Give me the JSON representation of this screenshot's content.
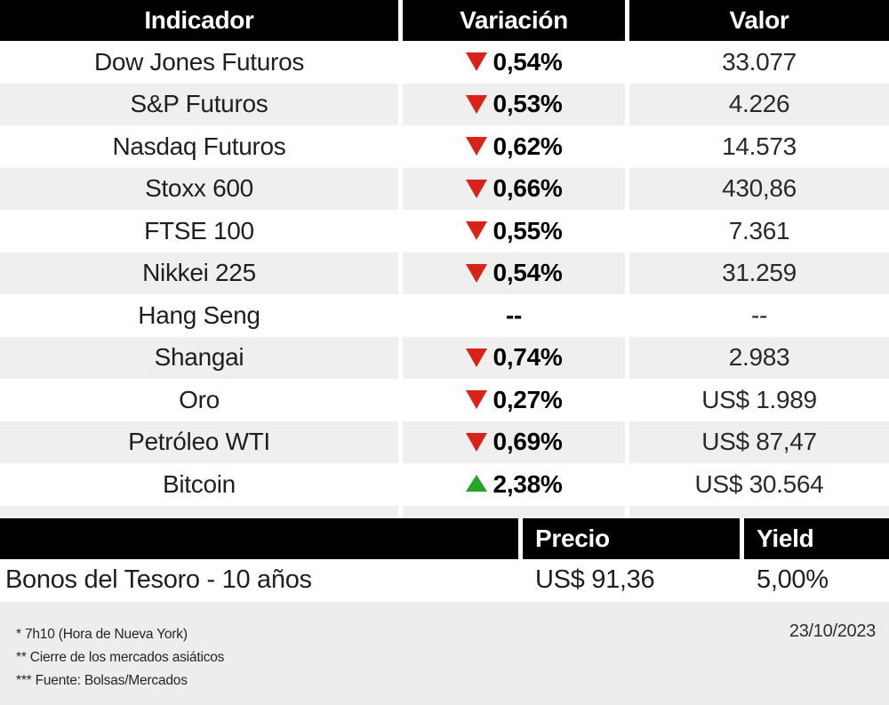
{
  "colors": {
    "header_bg": "#000000",
    "row_alt_bg": "#efefef",
    "footer_bg": "#ededed",
    "down_red": "#da2318",
    "up_green": "#26a426"
  },
  "chart_data": {
    "type": "table",
    "tables": [
      {
        "headers": {
          "indicator": "Indicador",
          "variation": "Variación",
          "value": "Valor"
        },
        "rows": [
          {
            "indicator": "Dow Jones Futuros",
            "direction": "down",
            "variation": "0,54%",
            "value": "33.077"
          },
          {
            "indicator": "S&P Futuros",
            "direction": "down",
            "variation": "0,53%",
            "value": "4.226"
          },
          {
            "indicator": "Nasdaq Futuros",
            "direction": "down",
            "variation": "0,62%",
            "value": "14.573"
          },
          {
            "indicator": "Stoxx 600",
            "direction": "down",
            "variation": "0,66%",
            "value": "430,86"
          },
          {
            "indicator": "FTSE 100",
            "direction": "down",
            "variation": "0,55%",
            "value": "7.361"
          },
          {
            "indicator": "Nikkei 225",
            "direction": "down",
            "variation": "0,54%",
            "value": "31.259"
          },
          {
            "indicator": "Hang Seng",
            "direction": "none",
            "variation": "--",
            "value": "--"
          },
          {
            "indicator": "Shangai",
            "direction": "down",
            "variation": "0,74%",
            "value": "2.983"
          },
          {
            "indicator": "Oro",
            "direction": "down",
            "variation": "0,27%",
            "value": "US$ 1.989"
          },
          {
            "indicator": "Petróleo WTI",
            "direction": "down",
            "variation": "0,69%",
            "value": "US$ 87,47"
          },
          {
            "indicator": "Bitcoin",
            "direction": "up",
            "variation": "2,38%",
            "value": "US$ 30.564"
          }
        ]
      },
      {
        "headers": {
          "name": "",
          "price": "Precio",
          "yield": "Yield"
        },
        "rows": [
          {
            "name": "Bonos del Tesoro - 10 años",
            "price": "US$ 91,36",
            "yield": "5,00%"
          }
        ]
      }
    ]
  },
  "footer": {
    "notes": [
      "* 7h10 (Hora de Nueva York)",
      "** Cierre de los mercados asiáticos",
      "*** Fuente: Bolsas/Mercados"
    ],
    "date": "23/10/2023"
  }
}
